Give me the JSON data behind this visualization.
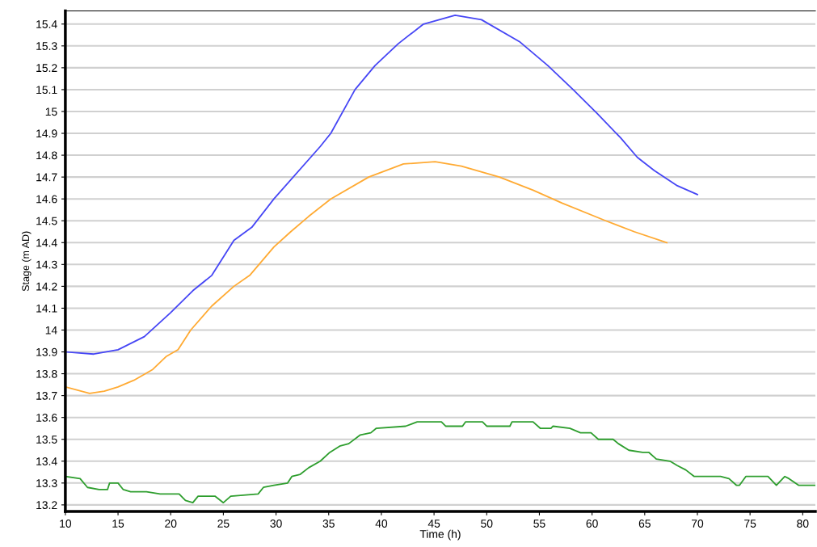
{
  "chart_data": {
    "type": "line",
    "xlabel": "Time (h)",
    "ylabel": "Stage (m AD)",
    "xlim": [
      10,
      81.2
    ],
    "xticks": [
      10,
      15,
      20,
      25,
      30,
      35,
      40,
      45,
      50,
      55,
      60,
      65,
      70,
      75,
      80
    ],
    "ylim": [
      13.17,
      15.46
    ],
    "yticks": [
      13.2,
      13.3,
      13.4,
      13.5,
      13.6,
      13.7,
      13.8,
      13.9,
      14,
      14.1,
      14.2,
      14.3,
      14.4,
      14.5,
      14.6,
      14.7,
      14.8,
      14.9,
      15,
      15.1,
      15.2,
      15.3,
      15.4
    ],
    "grid": "y",
    "line_style": "solid",
    "marker": "none",
    "series": [
      {
        "color": "#4646f5",
        "x": [
          10,
          12.7,
          15,
          17.5,
          20,
          22.1,
          23.9,
          26,
          27.7,
          29.8,
          34.2,
          35.2,
          37.5,
          39.4,
          41.6,
          44,
          47,
          49.5,
          53.1,
          55.8,
          58.2,
          60.5,
          62.7,
          64.3,
          65.9,
          68.1,
          70
        ],
        "values": [
          13.9,
          13.89,
          13.91,
          13.97,
          14.08,
          14.18,
          14.25,
          14.41,
          14.47,
          14.6,
          14.84,
          14.9,
          15.1,
          15.21,
          15.31,
          15.4,
          15.44,
          15.42,
          15.32,
          15.21,
          15.1,
          14.99,
          14.88,
          14.79,
          14.73,
          14.66,
          14.62
        ]
      },
      {
        "color": "#ffaa33",
        "x": [
          10,
          12.3,
          13.7,
          15,
          16.5,
          18.3,
          19.6,
          20.7,
          21.9,
          23.9,
          26,
          27.5,
          29.8,
          31.4,
          33.1,
          35.2,
          38.8,
          42.1,
          45.1,
          47.6,
          51.2,
          54.4,
          57.2,
          61.3,
          64,
          67.1
        ],
        "values": [
          13.74,
          13.71,
          13.72,
          13.74,
          13.77,
          13.82,
          13.88,
          13.91,
          14.0,
          14.11,
          14.2,
          14.25,
          14.38,
          14.45,
          14.52,
          14.6,
          14.7,
          14.76,
          14.77,
          14.75,
          14.7,
          14.64,
          14.58,
          14.5,
          14.45,
          14.4
        ]
      },
      {
        "color": "#2e9e2e",
        "x": [
          10,
          11.4,
          12.1,
          13.2,
          14,
          14.2,
          15,
          15.5,
          16.2,
          17.7,
          19,
          20.8,
          21.4,
          22.1,
          22.6,
          24.2,
          25,
          25.7,
          28.3,
          28.8,
          29.8,
          31.1,
          31.5,
          32.3,
          33.1,
          34.2,
          35.1,
          36.1,
          36.9,
          38,
          39,
          39.5,
          42.3,
          43.4,
          45.7,
          46.1,
          47.7,
          48,
          49.6,
          50,
          52.2,
          52.4,
          54.4,
          55.1,
          56.1,
          56.3,
          57.9,
          58.9,
          59.9,
          60.6,
          62,
          62.5,
          63.5,
          64.8,
          65.4,
          66.1,
          67.4,
          68.1,
          68.9,
          69.7,
          72.2,
          73,
          73.7,
          74,
          74.6,
          76.7,
          77.5,
          78.3,
          78.7,
          79.6,
          81.2
        ],
        "values": [
          13.33,
          13.32,
          13.28,
          13.27,
          13.27,
          13.3,
          13.3,
          13.27,
          13.26,
          13.26,
          13.25,
          13.25,
          13.22,
          13.21,
          13.24,
          13.24,
          13.21,
          13.24,
          13.25,
          13.28,
          13.29,
          13.3,
          13.33,
          13.34,
          13.37,
          13.4,
          13.44,
          13.47,
          13.48,
          13.52,
          13.53,
          13.55,
          13.56,
          13.58,
          13.58,
          13.56,
          13.56,
          13.58,
          13.58,
          13.56,
          13.56,
          13.58,
          13.58,
          13.55,
          13.55,
          13.56,
          13.55,
          13.53,
          13.53,
          13.5,
          13.5,
          13.48,
          13.45,
          13.44,
          13.44,
          13.41,
          13.4,
          13.38,
          13.36,
          13.33,
          13.33,
          13.32,
          13.29,
          13.29,
          13.33,
          13.33,
          13.29,
          13.33,
          13.32,
          13.29,
          13.29
        ]
      }
    ]
  }
}
